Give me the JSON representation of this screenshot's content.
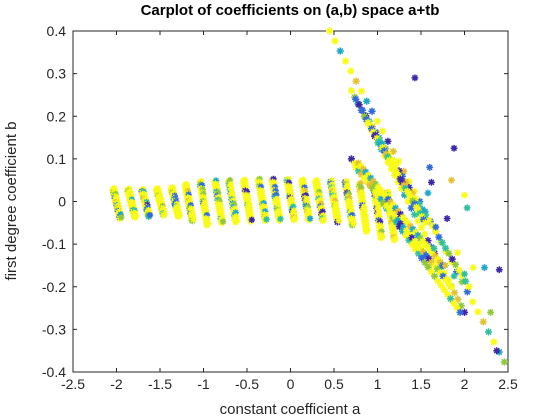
{
  "chart_data": {
    "type": "scatter",
    "title": "Carplot of coefficients on (a,b) space a+tb",
    "xlabel": "constant coefficient a",
    "ylabel": "first degree coefficient b",
    "xlim": [
      -2.5,
      2.5
    ],
    "ylim": [
      -0.4,
      0.4
    ],
    "xticks": [
      "-2.5",
      "-2",
      "-1.5",
      "-1",
      "-0.5",
      "0",
      "0.5",
      "1",
      "1.5",
      "2",
      "2.5"
    ],
    "yticks": [
      "0.4",
      "0.3",
      "0.2",
      "0.1",
      "0",
      "-0.1",
      "-0.2",
      "-0.3",
      "-0.4"
    ],
    "grid": false,
    "marker": "asterisk",
    "colormap": [
      "#3e26a8",
      "#2f6bdb",
      "#1fa7c9",
      "#2fc0a0",
      "#8fc93a",
      "#e6c030",
      "#f9fb15"
    ],
    "families": [
      {
        "name": "horizontal band strokes",
        "centers_a": [
          -2.0,
          -1.83,
          -1.67,
          -1.5,
          -1.33,
          -1.17,
          -1.0,
          -0.83,
          -0.67,
          -0.5,
          -0.33,
          -0.17,
          0.0,
          0.17,
          0.33,
          0.5,
          0.67,
          0.83,
          1.0,
          1.15
        ],
        "b_top": [
          0.028,
          0.027,
          0.026,
          0.028,
          0.03,
          0.038,
          0.045,
          0.046,
          0.047,
          0.048,
          0.05,
          0.05,
          0.05,
          0.048,
          0.047,
          0.046,
          0.045,
          0.04,
          0.03,
          0.02
        ],
        "b_bottom": [
          -0.04,
          -0.037,
          -0.035,
          -0.032,
          -0.035,
          -0.045,
          -0.055,
          -0.05,
          -0.048,
          -0.046,
          -0.045,
          -0.044,
          -0.043,
          -0.043,
          -0.045,
          -0.048,
          -0.055,
          -0.07,
          -0.085,
          -0.09
        ],
        "stroke_width_a": 0.08
      },
      {
        "name": "diagonal lines",
        "lines": [
          {
            "from": [
              0.45,
              0.4
            ],
            "to": [
              2.52,
              -0.4
            ]
          },
          {
            "from": [
              0.7,
              0.26
            ],
            "to": [
              2.0,
              -0.26
            ]
          },
          {
            "from": [
              0.75,
              0.24
            ],
            "to": [
              2.05,
              -0.2
            ]
          },
          {
            "from": [
              0.7,
              0.1
            ],
            "to": [
              1.95,
              -0.26
            ]
          },
          {
            "from": [
              0.75,
              0.08
            ],
            "to": [
              1.85,
              -0.2
            ]
          },
          {
            "from": [
              0.78,
              0.09
            ],
            "to": [
              1.75,
              -0.15
            ]
          },
          {
            "from": [
              0.85,
              0.2
            ],
            "to": [
              1.55,
              -0.05
            ]
          }
        ]
      }
    ],
    "outliers": [
      {
        "x": 1.43,
        "y": 0.29
      },
      {
        "x": 1.88,
        "y": 0.125
      },
      {
        "x": 2.23,
        "y": -0.155
      },
      {
        "x": 2.4,
        "y": -0.16
      },
      {
        "x": 2.1,
        "y": -0.155
      },
      {
        "x": 2.0,
        "y": -0.17
      },
      {
        "x": 2.37,
        "y": -0.35
      },
      {
        "x": 2.3,
        "y": -0.26
      },
      {
        "x": 2.03,
        "y": -0.015
      },
      {
        "x": 2.0,
        "y": 0.015
      },
      {
        "x": 1.6,
        "y": 0.08
      },
      {
        "x": 1.62,
        "y": 0.045
      },
      {
        "x": 1.85,
        "y": 0.05
      },
      {
        "x": 1.58,
        "y": 0.02
      },
      {
        "x": 1.8,
        "y": -0.04
      },
      {
        "x": 1.67,
        "y": -0.06
      },
      {
        "x": 1.65,
        "y": -0.11
      },
      {
        "x": 1.78,
        "y": -0.15
      },
      {
        "x": 1.92,
        "y": -0.12
      },
      {
        "x": 1.88,
        "y": -0.175
      }
    ]
  }
}
